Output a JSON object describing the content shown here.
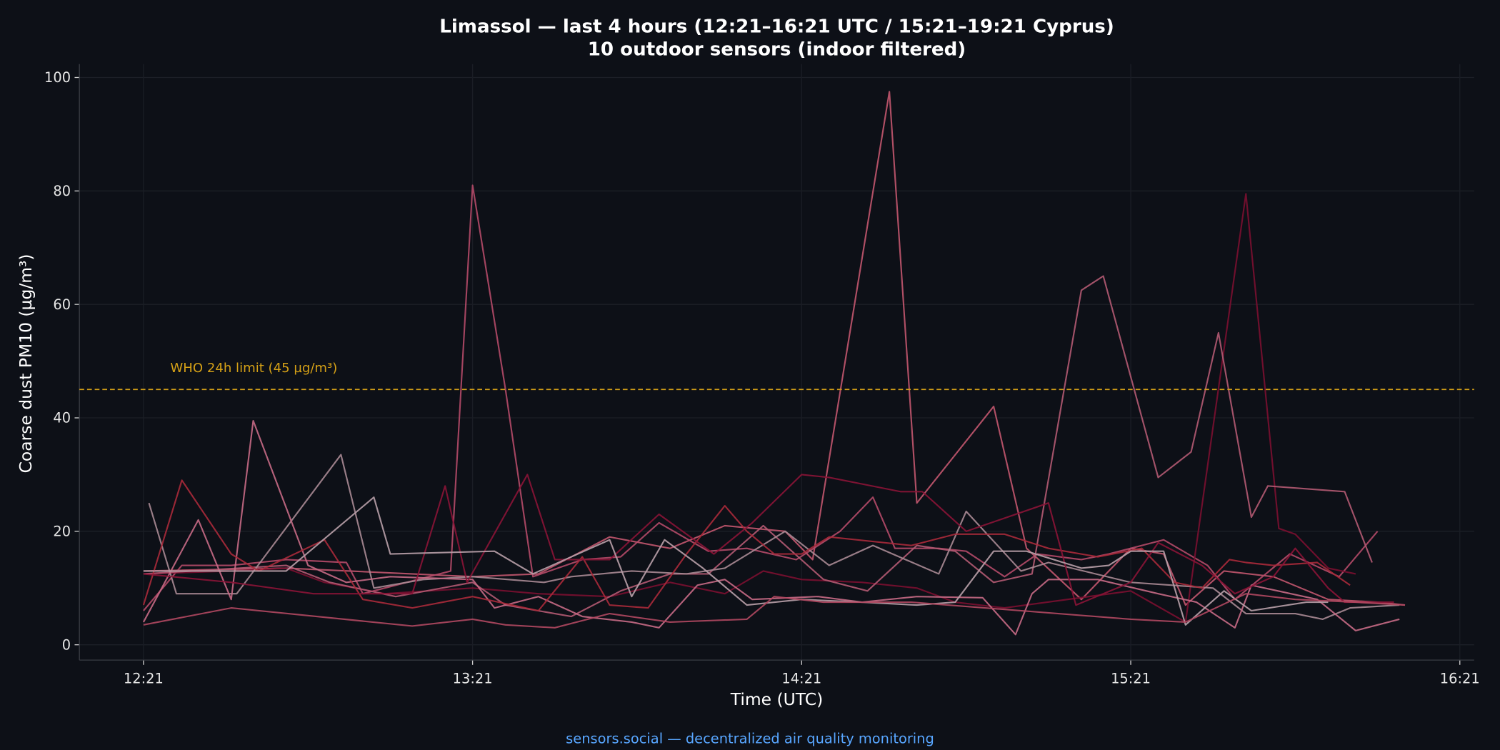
{
  "chart_data": {
    "type": "line",
    "title": "Limassol — last 4 hours (12:21–16:21 UTC / 15:21–19:21 Cyprus)",
    "subtitle": "10 outdoor sensors (indoor filtered)",
    "xlabel": "Time (UTC)",
    "ylabel": "Coarse dust PM10 (µg/m³)",
    "x_ticks": [
      "12:21",
      "13:21",
      "14:21",
      "15:21",
      "16:21"
    ],
    "y_ticks": [
      0,
      20,
      40,
      60,
      80,
      100
    ],
    "xlim": [
      "12:09",
      "16:21"
    ],
    "ylim": [
      -2.7,
      102.5
    ],
    "grid": true,
    "legend": "none",
    "reference_line": {
      "label": "WHO 24h limit (45 µg/m³)",
      "value": 45,
      "color": "#d4a017",
      "style": "dashed"
    },
    "background_color": "#0d1017",
    "series": [
      {
        "color": "#c2566e",
        "points": [
          [
            "12:21",
            13
          ],
          [
            "12:47",
            13.5
          ],
          [
            "13:21",
            12
          ],
          [
            "13:33",
            12.5
          ],
          [
            "13:46",
            19
          ],
          [
            "13:57",
            17
          ],
          [
            "14:07",
            21
          ],
          [
            "14:18",
            20
          ],
          [
            "14:23",
            15
          ],
          [
            "14:37",
            97.5
          ],
          [
            "14:42",
            25
          ],
          [
            "14:56",
            42
          ],
          [
            "15:02",
            17
          ],
          [
            "15:12",
            8
          ],
          [
            "15:21",
            17
          ],
          [
            "15:27",
            16
          ],
          [
            "15:31",
            7
          ],
          [
            "15:38",
            13
          ],
          [
            "15:47",
            12
          ],
          [
            "15:57",
            8
          ],
          [
            "16:06",
            7.5
          ],
          [
            "16:11",
            7
          ]
        ]
      },
      {
        "color": "#b44a68",
        "points": [
          [
            "12:21",
            6
          ],
          [
            "12:28",
            14
          ],
          [
            "12:37",
            14
          ],
          [
            "12:47",
            15
          ],
          [
            "12:58",
            14.5
          ],
          [
            "13:01",
            9
          ],
          [
            "13:17",
            13
          ],
          [
            "13:21",
            81
          ],
          [
            "13:27",
            45
          ],
          [
            "13:32",
            12
          ],
          [
            "13:41",
            15
          ],
          [
            "13:48",
            15.5
          ],
          [
            "13:55",
            21.5
          ],
          [
            "14:04",
            16.5
          ],
          [
            "14:11",
            17
          ],
          [
            "14:20",
            15
          ],
          [
            "14:28",
            20
          ],
          [
            "14:34",
            26
          ],
          [
            "14:38",
            17
          ],
          [
            "14:46",
            17
          ],
          [
            "14:51",
            16.5
          ],
          [
            "14:58",
            12
          ],
          [
            "15:04",
            16
          ],
          [
            "15:12",
            15
          ],
          [
            "15:17",
            16
          ],
          [
            "15:27",
            18.5
          ],
          [
            "15:35",
            14
          ],
          [
            "15:40",
            8
          ],
          [
            "15:50",
            16
          ],
          [
            "15:59",
            12
          ],
          [
            "16:06",
            20
          ]
        ]
      },
      {
        "color": "#7a1030",
        "points": [
          [
            "12:21",
            12.5
          ],
          [
            "12:37",
            13
          ],
          [
            "12:47",
            13.5
          ],
          [
            "12:54",
            11
          ],
          [
            "13:05",
            9
          ],
          [
            "13:21",
            10
          ],
          [
            "13:33",
            9
          ],
          [
            "13:46",
            8.5
          ],
          [
            "13:57",
            11
          ],
          [
            "14:07",
            9
          ],
          [
            "14:14",
            13
          ],
          [
            "14:21",
            11.5
          ],
          [
            "14:32",
            11
          ],
          [
            "14:42",
            10
          ],
          [
            "14:49",
            7.5
          ],
          [
            "14:58",
            6.5
          ],
          [
            "15:21",
            9.5
          ],
          [
            "15:31",
            4
          ],
          [
            "15:42",
            79.5
          ],
          [
            "15:48",
            20.5
          ],
          [
            "15:51",
            19.5
          ],
          [
            "15:57",
            13.5
          ],
          [
            "16:02",
            12.5
          ]
        ]
      },
      {
        "color": "#b35a72",
        "points": [
          [
            "12:21",
            12.5
          ],
          [
            "12:47",
            14
          ],
          [
            "12:55",
            11
          ],
          [
            "13:07",
            8.5
          ],
          [
            "13:21",
            11
          ],
          [
            "13:27",
            7
          ],
          [
            "13:39",
            5
          ],
          [
            "13:48",
            9.5
          ],
          [
            "13:57",
            12.5
          ],
          [
            "14:04",
            12.5
          ],
          [
            "14:14",
            21
          ],
          [
            "14:25",
            11.5
          ],
          [
            "14:33",
            9.5
          ],
          [
            "14:42",
            17.5
          ],
          [
            "14:49",
            16.5
          ],
          [
            "14:56",
            11
          ],
          [
            "15:03",
            12.5
          ],
          [
            "15:12",
            62.5
          ],
          [
            "15:16",
            65
          ],
          [
            "15:26",
            29.5
          ],
          [
            "15:32",
            34
          ],
          [
            "15:37",
            55
          ],
          [
            "15:43",
            22.5
          ],
          [
            "15:46",
            28
          ],
          [
            "16:00",
            27
          ],
          [
            "16:05",
            14.5
          ]
        ]
      },
      {
        "color": "#a88a94",
        "points": [
          [
            "12:22",
            25
          ],
          [
            "12:27",
            9
          ],
          [
            "12:38",
            9
          ],
          [
            "12:57",
            33.5
          ],
          [
            "13:03",
            10
          ],
          [
            "13:12",
            11.5
          ],
          [
            "13:21",
            12
          ],
          [
            "13:34",
            11
          ],
          [
            "13:39",
            12
          ],
          [
            "13:50",
            13
          ],
          [
            "14:00",
            12.5
          ],
          [
            "14:07",
            13.5
          ],
          [
            "14:18",
            20
          ],
          [
            "14:26",
            14
          ],
          [
            "14:34",
            17.5
          ],
          [
            "14:46",
            12.5
          ],
          [
            "14:51",
            23.5
          ],
          [
            "15:01",
            13
          ],
          [
            "15:06",
            14.5
          ],
          [
            "15:21",
            11
          ],
          [
            "15:36",
            10
          ],
          [
            "15:42",
            5.5
          ],
          [
            "15:51",
            5.5
          ],
          [
            "15:56",
            4.5
          ],
          [
            "16:01",
            6.5
          ],
          [
            "16:10",
            7
          ]
        ]
      },
      {
        "color": "#c76a85",
        "points": [
          [
            "12:21",
            4
          ],
          [
            "12:31",
            22
          ],
          [
            "12:37",
            8
          ],
          [
            "12:41",
            39.5
          ],
          [
            "12:51",
            14
          ],
          [
            "12:58",
            11
          ],
          [
            "13:06",
            12
          ],
          [
            "13:21",
            11.5
          ],
          [
            "13:25",
            6.5
          ],
          [
            "13:33",
            8.5
          ],
          [
            "13:41",
            5
          ],
          [
            "13:50",
            4
          ],
          [
            "13:55",
            3
          ],
          [
            "14:02",
            10.5
          ],
          [
            "14:07",
            11.5
          ],
          [
            "14:12",
            8
          ],
          [
            "14:24",
            8.5
          ],
          [
            "14:32",
            7.5
          ],
          [
            "14:42",
            8.5
          ],
          [
            "14:54",
            8.3
          ],
          [
            "15:00",
            1.8
          ],
          [
            "15:03",
            9
          ],
          [
            "15:06",
            11.5
          ],
          [
            "15:15",
            11.5
          ],
          [
            "15:26",
            9
          ],
          [
            "15:33",
            7.5
          ],
          [
            "15:40",
            3
          ],
          [
            "15:43",
            10.5
          ],
          [
            "15:55",
            8
          ],
          [
            "16:02",
            2.5
          ],
          [
            "16:10",
            4.5
          ]
        ]
      },
      {
        "color": "#a82a3a",
        "points": [
          [
            "12:21",
            7
          ],
          [
            "12:28",
            29
          ],
          [
            "12:37",
            16
          ],
          [
            "12:42",
            13
          ],
          [
            "12:54",
            18.5
          ],
          [
            "13:01",
            8
          ],
          [
            "13:10",
            6.5
          ],
          [
            "13:21",
            8.5
          ],
          [
            "13:33",
            6
          ],
          [
            "13:41",
            15.5
          ],
          [
            "13:46",
            7
          ],
          [
            "13:53",
            6.5
          ],
          [
            "14:00",
            16
          ],
          [
            "14:07",
            24.5
          ],
          [
            "14:11",
            20
          ],
          [
            "14:16",
            16
          ],
          [
            "14:21",
            16
          ],
          [
            "14:26",
            19
          ],
          [
            "14:41",
            17.5
          ],
          [
            "14:49",
            19.5
          ],
          [
            "14:58",
            19.5
          ],
          [
            "15:06",
            17
          ],
          [
            "15:15",
            15.5
          ],
          [
            "15:23",
            17
          ],
          [
            "15:29",
            11
          ],
          [
            "15:34",
            10
          ],
          [
            "15:39",
            15
          ],
          [
            "15:42",
            14.5
          ],
          [
            "15:47",
            14
          ],
          [
            "15:55",
            14.5
          ],
          [
            "16:01",
            10.5
          ]
        ]
      },
      {
        "color": "#8a1436",
        "points": [
          [
            "12:21",
            12.5
          ],
          [
            "12:37",
            11
          ],
          [
            "12:52",
            9
          ],
          [
            "13:10",
            9
          ],
          [
            "13:16",
            28
          ],
          [
            "13:20",
            11
          ],
          [
            "13:31",
            30
          ],
          [
            "13:36",
            15
          ],
          [
            "13:46",
            15
          ],
          [
            "13:55",
            23
          ],
          [
            "14:05",
            16
          ],
          [
            "14:12",
            21.5
          ],
          [
            "14:21",
            30
          ],
          [
            "14:26",
            29.5
          ],
          [
            "14:39",
            27
          ],
          [
            "14:43",
            27
          ],
          [
            "14:51",
            20
          ],
          [
            "15:06",
            25
          ],
          [
            "15:11",
            7
          ],
          [
            "15:21",
            11
          ],
          [
            "15:26",
            18
          ],
          [
            "15:34",
            14
          ],
          [
            "15:40",
            9
          ],
          [
            "15:47",
            12
          ],
          [
            "15:51",
            17
          ],
          [
            "15:57",
            10
          ],
          [
            "16:00",
            7.5
          ],
          [
            "16:09",
            7.5
          ]
        ]
      },
      {
        "color": "#b8a0a8",
        "points": [
          [
            "12:21",
            13
          ],
          [
            "12:47",
            13
          ],
          [
            "13:03",
            26
          ],
          [
            "13:06",
            16
          ],
          [
            "13:25",
            16.5
          ],
          [
            "13:32",
            12.5
          ],
          [
            "13:46",
            18.5
          ],
          [
            "13:50",
            8.5
          ],
          [
            "13:56",
            18.5
          ],
          [
            "14:03",
            13.5
          ],
          [
            "14:11",
            7
          ],
          [
            "14:21",
            8
          ],
          [
            "14:32",
            7.5
          ],
          [
            "14:42",
            7
          ],
          [
            "14:49",
            7.5
          ],
          [
            "14:56",
            16.5
          ],
          [
            "15:02",
            16.5
          ],
          [
            "15:12",
            13.5
          ],
          [
            "15:17",
            14
          ],
          [
            "15:21",
            16.5
          ],
          [
            "15:27",
            16.5
          ],
          [
            "15:31",
            3.5
          ],
          [
            "15:38",
            9.5
          ],
          [
            "15:43",
            6
          ],
          [
            "15:53",
            7.5
          ],
          [
            "15:57",
            7.5
          ]
        ]
      },
      {
        "color": "#b04860",
        "points": [
          [
            "12:21",
            3.5
          ],
          [
            "12:37",
            6.5
          ],
          [
            "13:10",
            3.3
          ],
          [
            "13:21",
            4.5
          ],
          [
            "13:27",
            3.5
          ],
          [
            "13:36",
            3
          ],
          [
            "13:46",
            5.5
          ],
          [
            "13:57",
            4
          ],
          [
            "14:11",
            4.5
          ],
          [
            "14:16",
            8.5
          ],
          [
            "14:25",
            7.5
          ],
          [
            "14:41",
            7.5
          ],
          [
            "15:21",
            4.5
          ],
          [
            "15:31",
            4
          ],
          [
            "15:42",
            9
          ],
          [
            "15:51",
            8
          ],
          [
            "16:02",
            7.5
          ],
          [
            "16:11",
            7
          ]
        ]
      }
    ]
  },
  "footer": "sensors.social — decentralized air quality monitoring"
}
